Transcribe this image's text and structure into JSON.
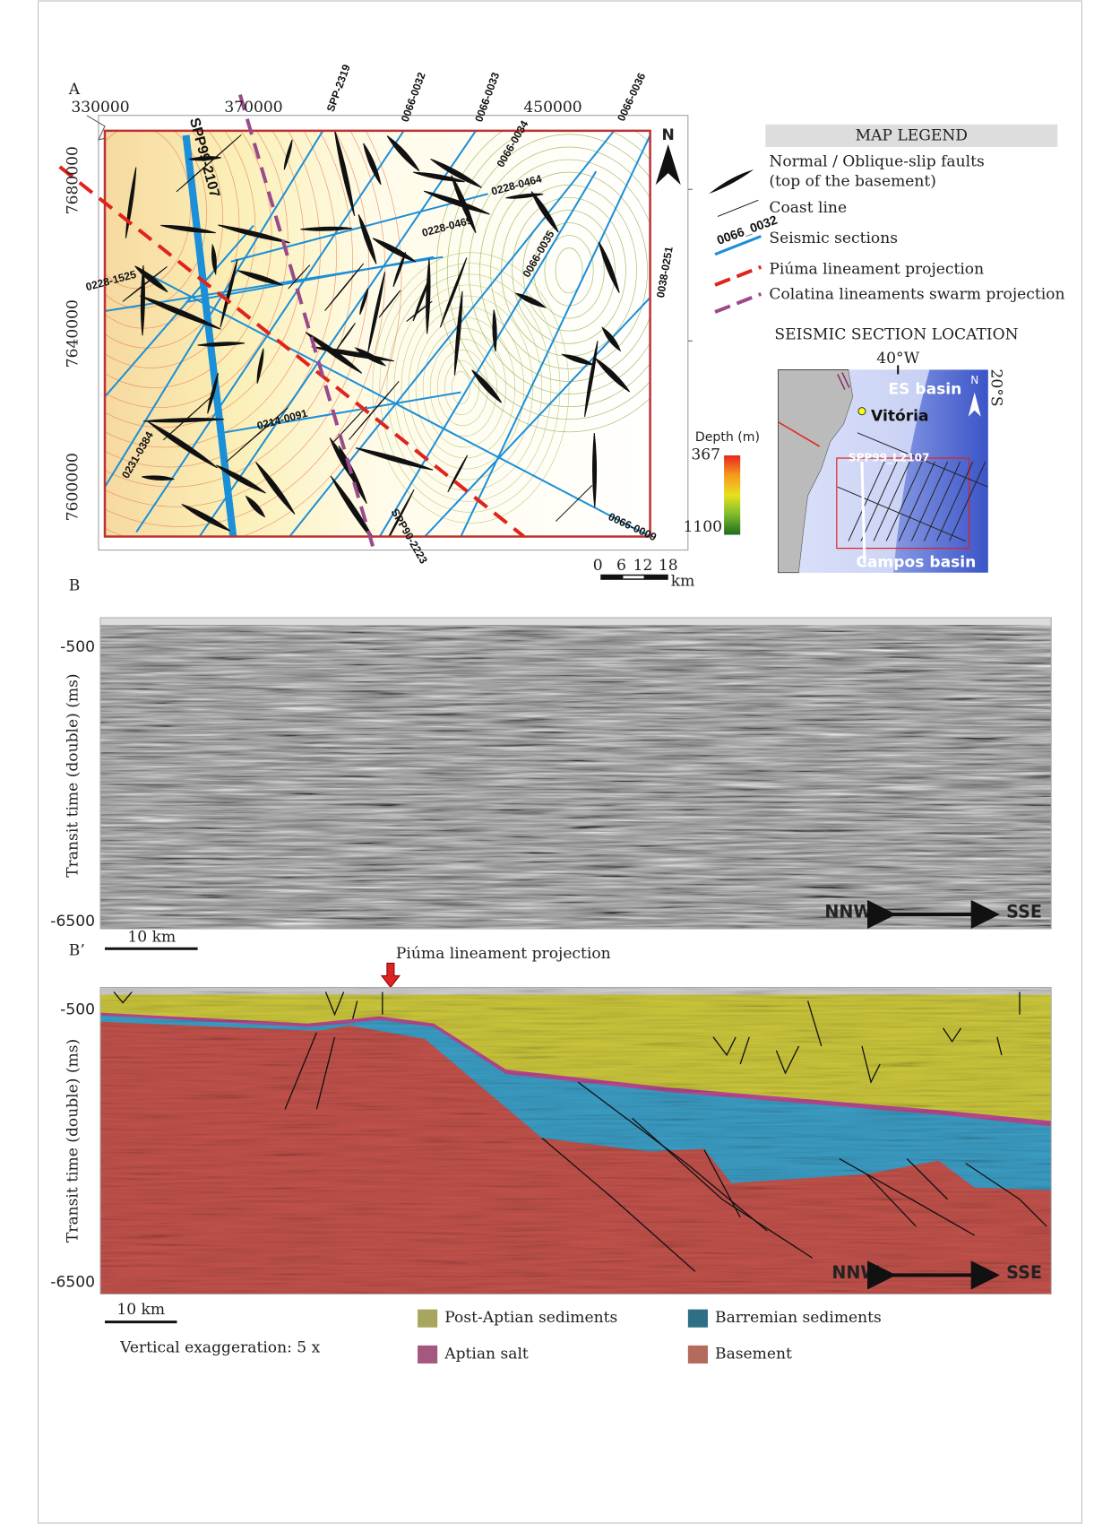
{
  "panel_a": {
    "label": "A",
    "x_ticks": [
      "330000",
      "370000",
      "450000"
    ],
    "y_ticks": [
      "7680000",
      "7640000",
      "7600000"
    ],
    "north": "N",
    "seismic_lines": [
      "SPP99-2107",
      "SPP-2319",
      "0066-0032",
      "0066-0033",
      "0066-0036",
      "0066-0034",
      "0228-0464",
      "0228-0469",
      "0066-0035",
      "0038-0251",
      "0228-1525",
      "0231-0384",
      "0214-0091",
      "SPP90-2223",
      "0066-0009"
    ],
    "legend_title": "MAP LEGEND",
    "legend_items": [
      "Normal / Oblique-slip faults",
      "(top of the basement)",
      "Coast line",
      "Seismic sections",
      "Piúma lineament projection",
      "Colatina lineaments swarm projection"
    ],
    "legend_line_sample": "0066_0032",
    "location_title": "SEISMIC SECTION LOCATION",
    "inset_labels": [
      "40°W",
      "20°S",
      "ES basin",
      "Vitória",
      "SPP99_L2107",
      "Campos basin",
      "N"
    ],
    "depth_title": "Depth (m)",
    "depth_top": "367",
    "depth_bottom": "1100",
    "scale_ticks": [
      "0",
      "6",
      "12",
      "18"
    ],
    "scale_unit": "km"
  },
  "panel_b": {
    "label": "B",
    "y_axis": "Transit time (double) (ms)",
    "y_ticks": [
      "-500",
      "-6500"
    ],
    "direction_left": "NNW",
    "direction_right": "SSE",
    "scale": "10 km"
  },
  "panel_b_prime": {
    "label": "B’",
    "annotation": "Piúma lineament projection",
    "y_axis": "Transit time (double) (ms)",
    "y_ticks": [
      "-500",
      "-6500"
    ],
    "direction_left": "NNW",
    "direction_right": "SSE",
    "scale": "10 km",
    "note": "Vertical exaggeration: 5 x",
    "legend_items": [
      "Post-Aptian sediments",
      "Barremian sediments",
      "Aptian salt",
      "Basement"
    ]
  }
}
